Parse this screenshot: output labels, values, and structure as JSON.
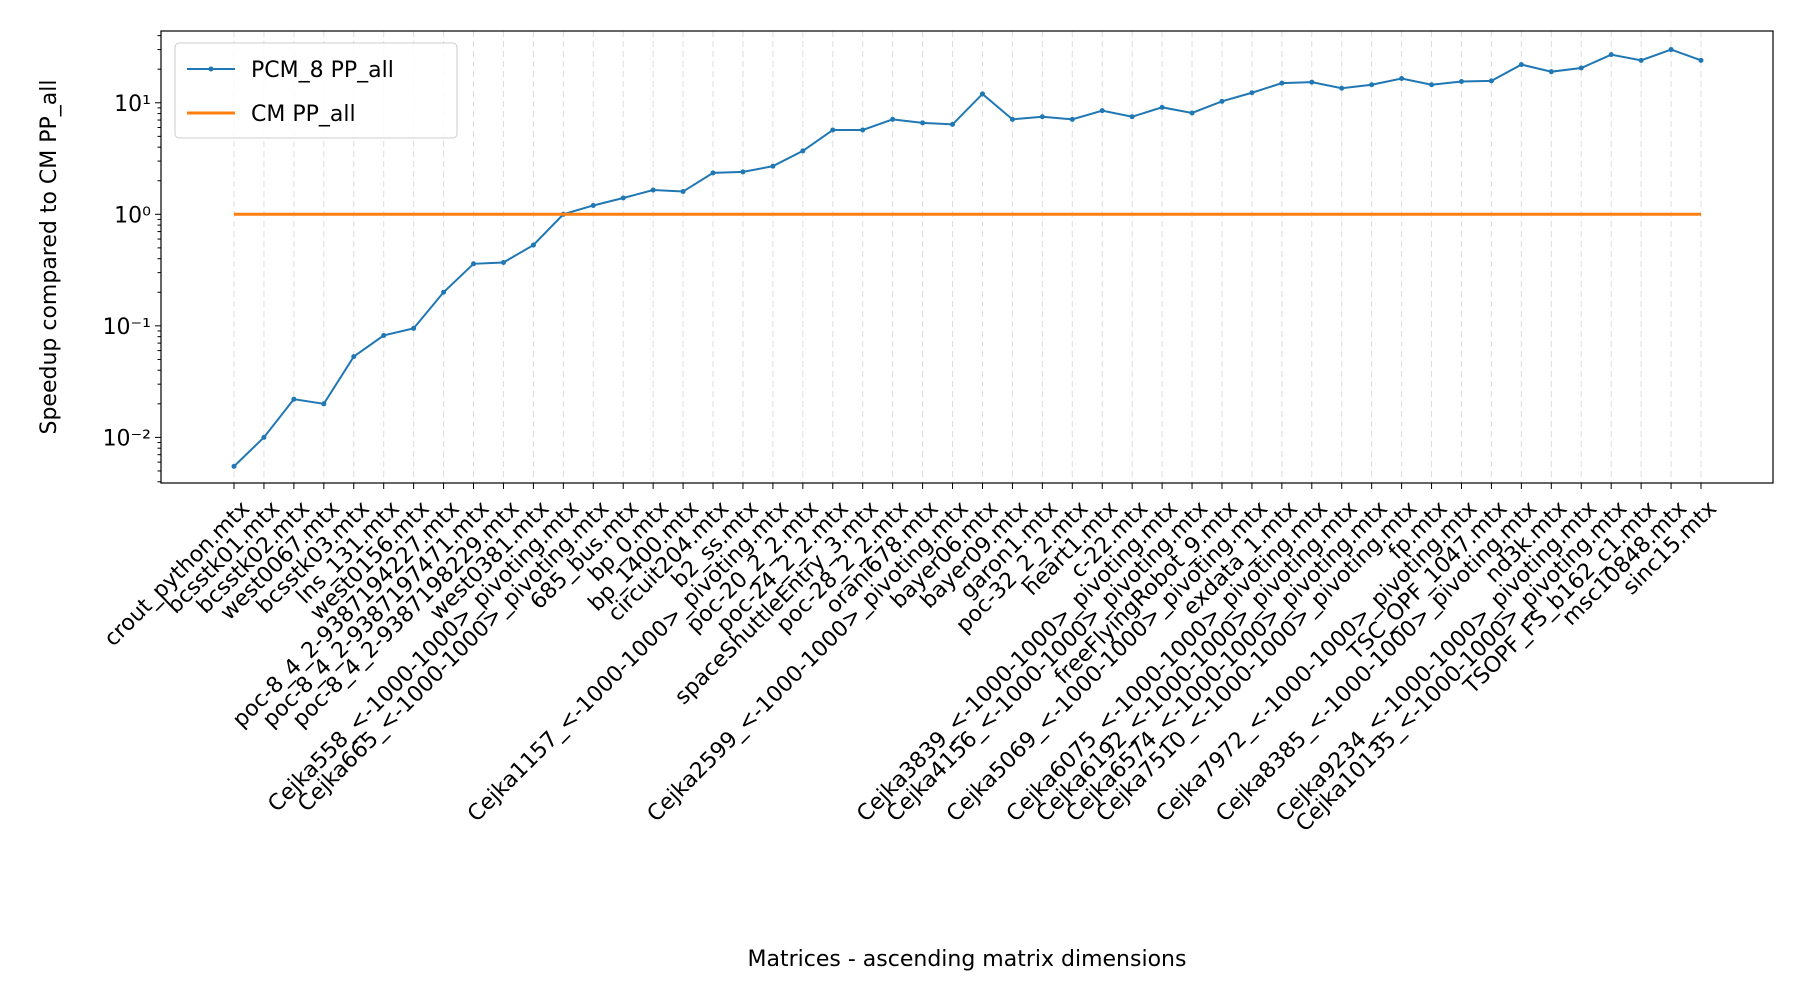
{
  "chart_data": {
    "type": "line",
    "x_label": "Matrices - ascending matrix dimensions",
    "y_label": "Speedup compared to CM PP_all",
    "categories": [
      "crout_python.mtx",
      "bcsstk01.mtx",
      "bcsstk02.mtx",
      "west0067.mtx",
      "bcsstk03.mtx",
      "lns_131.mtx",
      "west0156.mtx",
      "poc-8_4_2-9387194227.mtx",
      "poc-8_4_2-9387197471.mtx",
      "poc-8_4_2-9387198229.mtx",
      "west0381.mtx",
      "Cejka558_<-1000-1000>_pivoting.mtx",
      "Cejka665_<-1000-1000>_pivoting.mtx",
      "685_bus.mtx",
      "bp_0.mtx",
      "bp_1400.mtx",
      "circuit204.mtx",
      "b2_ss.mtx",
      "Cejka1157_<-1000-1000>_pivoting.mtx",
      "poc-20_2_2.mtx",
      "poc-24_2_2.mtx",
      "spaceShuttleEntry_3.mtx",
      "poc-28_2_2.mtx",
      "orani678.mtx",
      "Cejka2599_<-1000-1000>_pivoting.mtx",
      "bayer06.mtx",
      "bayer09.mtx",
      "garon1.mtx",
      "poc-32_2_2.mtx",
      "heart1.mtx",
      "c-22.mtx",
      "Cejka3839_<-1000-1000>_pivoting.mtx",
      "Cejka4156_<-1000-1000>_pivoting.mtx",
      "freeFlyingRobot_9.mtx",
      "Cejka5069_<-1000-1000>_pivoting.mtx",
      "exdata_1.mtx",
      "Cejka6075_<-1000-1000>_pivoting.mtx",
      "Cejka6192_<-1000-1000>_pivoting.mtx",
      "Cejka6574_<-1000-1000>_pivoting.mtx",
      "Cejka7510_<-1000-1000>_pivoting.mtx",
      "fp.mtx",
      "Cejka7972_<-1000-1000>_pivoting.mtx",
      "TSC_OPF_1047.mtx",
      "Cejka8385_<-1000-1000>_pivoting.mtx",
      "nd3k.mtx",
      "Cejka9234_<-1000-1000>_pivoting.mtx",
      "Cejka10135_<-1000-1000>_pivoting.mtx",
      "TSOPF_FS_b162_c1.mtx",
      "msc10848.mtx",
      "sinc15.mtx"
    ],
    "series": [
      {
        "name": "PCM_8 PP_all",
        "color": "#1f77b4",
        "markers": true,
        "values": [
          0.0055,
          0.01,
          0.022,
          0.02,
          0.053,
          0.082,
          0.095,
          0.2,
          0.36,
          0.37,
          0.53,
          1.0,
          1.2,
          1.4,
          1.65,
          1.6,
          2.35,
          2.4,
          2.7,
          3.7,
          5.7,
          5.7,
          7.1,
          6.6,
          6.4,
          12,
          7.1,
          7.5,
          7.1,
          8.5,
          7.5,
          9.1,
          8.1,
          10.3,
          12.3,
          15,
          15.3,
          13.5,
          14.5,
          16.5,
          14.5,
          15.5,
          15.7,
          22,
          19,
          20.5,
          27,
          24,
          30,
          24
        ]
      },
      {
        "name": "CM PP_all",
        "color": "#ff7f0e",
        "markers": false,
        "values": [
          1,
          1,
          1,
          1,
          1,
          1,
          1,
          1,
          1,
          1,
          1,
          1,
          1,
          1,
          1,
          1,
          1,
          1,
          1,
          1,
          1,
          1,
          1,
          1,
          1,
          1,
          1,
          1,
          1,
          1,
          1,
          1,
          1,
          1,
          1,
          1,
          1,
          1,
          1,
          1,
          1,
          1,
          1,
          1,
          1,
          1,
          1,
          1,
          1,
          1
        ]
      }
    ],
    "log_y": true,
    "ylim": [
      0.0039,
      44
    ],
    "yticks": [
      {
        "value": 0.01,
        "label": "10⁻²"
      },
      {
        "value": 0.1,
        "label": "10⁻¹"
      },
      {
        "value": 1,
        "label": "10⁰"
      },
      {
        "value": 10,
        "label": "10¹"
      }
    ],
    "grid_x": true,
    "legend": "upper left"
  }
}
